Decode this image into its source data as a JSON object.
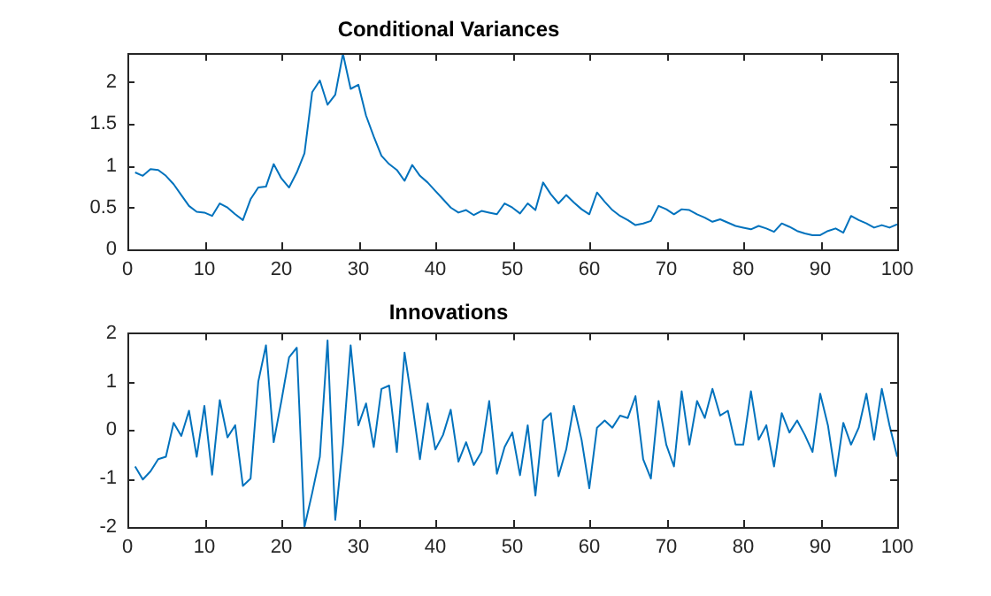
{
  "chart_data": [
    {
      "type": "line",
      "title": "Conditional Variances",
      "x": [
        1,
        2,
        3,
        4,
        5,
        6,
        7,
        8,
        9,
        10,
        11,
        12,
        13,
        14,
        15,
        16,
        17,
        18,
        19,
        20,
        21,
        22,
        23,
        24,
        25,
        26,
        27,
        28,
        29,
        30,
        31,
        32,
        33,
        34,
        35,
        36,
        37,
        38,
        39,
        40,
        41,
        42,
        43,
        44,
        45,
        46,
        47,
        48,
        49,
        50,
        51,
        52,
        53,
        54,
        55,
        56,
        57,
        58,
        59,
        60,
        61,
        62,
        63,
        64,
        65,
        66,
        67,
        68,
        69,
        70,
        71,
        72,
        73,
        74,
        75,
        76,
        77,
        78,
        79,
        80,
        81,
        82,
        83,
        84,
        85,
        86,
        87,
        88,
        89,
        90,
        91,
        92,
        93,
        94,
        95,
        96,
        97,
        98,
        99,
        100
      ],
      "series": [
        {
          "color": "#0072bd",
          "values": [
            0.92,
            0.88,
            0.96,
            0.95,
            0.88,
            0.78,
            0.65,
            0.52,
            0.45,
            0.44,
            0.4,
            0.55,
            0.5,
            0.42,
            0.35,
            0.6,
            0.74,
            0.75,
            1.02,
            0.85,
            0.74,
            0.92,
            1.15,
            1.88,
            2.02,
            1.73,
            1.85,
            2.34,
            1.92,
            1.97,
            1.6,
            1.35,
            1.12,
            1.02,
            0.95,
            0.82,
            1.01,
            0.88,
            0.8,
            0.7,
            0.6,
            0.5,
            0.44,
            0.47,
            0.41,
            0.46,
            0.44,
            0.42,
            0.55,
            0.5,
            0.43,
            0.55,
            0.47,
            0.8,
            0.66,
            0.55,
            0.65,
            0.56,
            0.48,
            0.42,
            0.68,
            0.57,
            0.47,
            0.4,
            0.35,
            0.29,
            0.31,
            0.34,
            0.52,
            0.48,
            0.42,
            0.48,
            0.47,
            0.42,
            0.38,
            0.33,
            0.36,
            0.32,
            0.28,
            0.26,
            0.24,
            0.28,
            0.25,
            0.21,
            0.31,
            0.27,
            0.22,
            0.19,
            0.17,
            0.17,
            0.22,
            0.25,
            0.2,
            0.4,
            0.35,
            0.31,
            0.26,
            0.29,
            0.26,
            0.3
          ]
        }
      ],
      "xlim": [
        0,
        100
      ],
      "xticks": [
        0,
        10,
        20,
        30,
        40,
        50,
        60,
        70,
        80,
        90,
        100
      ],
      "ylim": [
        0,
        2.34
      ],
      "yticks": [
        0,
        0.5,
        1,
        1.5,
        2
      ]
    },
    {
      "type": "line",
      "title": "Innovations",
      "x": [
        1,
        2,
        3,
        4,
        5,
        6,
        7,
        8,
        9,
        10,
        11,
        12,
        13,
        14,
        15,
        16,
        17,
        18,
        19,
        20,
        21,
        22,
        23,
        24,
        25,
        26,
        27,
        28,
        29,
        30,
        31,
        32,
        33,
        34,
        35,
        36,
        37,
        38,
        39,
        40,
        41,
        42,
        43,
        44,
        45,
        46,
        47,
        48,
        49,
        50,
        51,
        52,
        53,
        54,
        55,
        56,
        57,
        58,
        59,
        60,
        61,
        62,
        63,
        64,
        65,
        66,
        67,
        68,
        69,
        70,
        71,
        72,
        73,
        74,
        75,
        76,
        77,
        78,
        79,
        80,
        81,
        82,
        83,
        84,
        85,
        86,
        87,
        88,
        89,
        90,
        91,
        92,
        93,
        94,
        95,
        96,
        97,
        98,
        99,
        100
      ],
      "series": [
        {
          "color": "#0072bd",
          "values": [
            -0.75,
            -1.02,
            -0.85,
            -0.6,
            -0.55,
            0.15,
            -0.12,
            0.4,
            -0.55,
            0.5,
            -0.92,
            0.62,
            -0.15,
            0.1,
            -1.15,
            -1.0,
            1.0,
            1.75,
            -0.25,
            0.6,
            1.5,
            1.7,
            -2.0,
            -1.3,
            -0.55,
            1.85,
            -1.85,
            -0.3,
            1.75,
            0.1,
            0.55,
            -0.35,
            0.85,
            0.92,
            -0.45,
            1.6,
            0.55,
            -0.6,
            0.55,
            -0.4,
            -0.1,
            0.42,
            -0.65,
            -0.25,
            -0.72,
            -0.45,
            0.6,
            -0.9,
            -0.35,
            -0.05,
            -0.93,
            0.1,
            -1.35,
            0.2,
            0.35,
            -0.95,
            -0.4,
            0.5,
            -0.2,
            -1.2,
            0.05,
            0.2,
            0.05,
            0.3,
            0.25,
            0.7,
            -0.6,
            -1.0,
            0.6,
            -0.3,
            -0.75,
            0.8,
            -0.3,
            0.6,
            0.25,
            0.85,
            0.3,
            0.4,
            -0.3,
            -0.3,
            0.8,
            -0.2,
            0.1,
            -0.75,
            0.35,
            -0.05,
            0.2,
            -0.1,
            -0.45,
            0.75,
            0.1,
            -0.95,
            0.15,
            -0.3,
            0.05,
            0.75,
            -0.2,
            0.85,
            0.1,
            -0.55
          ]
        }
      ],
      "xlim": [
        0,
        100
      ],
      "xticks": [
        0,
        10,
        20,
        30,
        40,
        50,
        60,
        70,
        80,
        90,
        100
      ],
      "ylim": [
        -2,
        2
      ],
      "yticks": [
        -2,
        -1,
        0,
        1,
        2
      ]
    }
  ]
}
